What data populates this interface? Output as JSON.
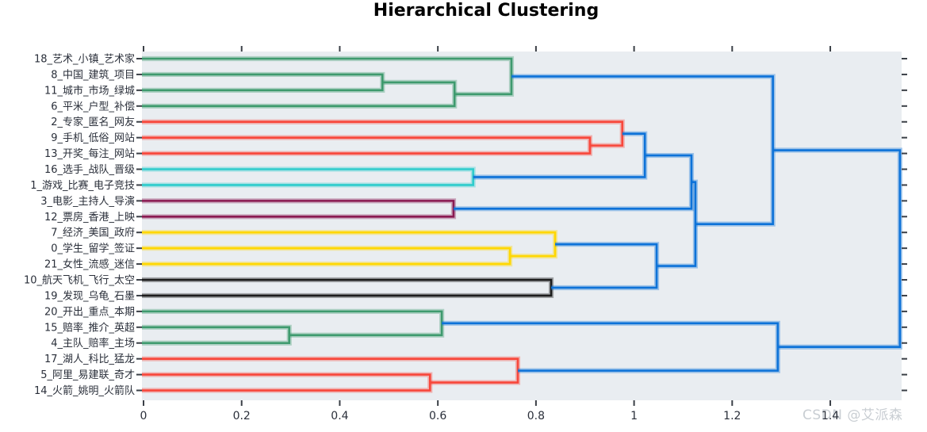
{
  "page": {
    "title": "Hierarchical Clustering",
    "watermark": "CSDN @艾派森"
  },
  "chart_data": {
    "type": "dendrogram",
    "orientation": "right",
    "title": "Hierarchical Clustering",
    "xlabel": "",
    "ylabel": "",
    "grid": false,
    "plot_bg": "#e9edf1",
    "xlim": [
      0,
      1.545
    ],
    "x_ticks": [
      0,
      0.2,
      0.4,
      0.6,
      0.8,
      1.0,
      1.2,
      1.4
    ],
    "x_tick_labels": [
      "0",
      "0.2",
      "0.4",
      "0.6",
      "0.8",
      "1",
      "1.2",
      "1.4"
    ],
    "tick_color": "#3a3f46",
    "label_color": "#2a2f3a",
    "colors": {
      "green": "#3e9a6e",
      "red": "#f8473b",
      "cyan": "#2fcccc",
      "purple": "#8a1a52",
      "yellow": "#ffd700",
      "black": "#1c1c1c",
      "blue": "#0d72d8"
    },
    "leaves": [
      "18_艺术_小镇_艺术家",
      "8_中国_建筑_项目",
      "11_城市_市场_绿城",
      "6_平米_户型_补偿",
      "2_专家_匿名_网友",
      "9_手机_低俗_网站",
      "13_开奖_每注_网站",
      "16_选手_战队_晋级",
      "1_游戏_比赛_电子竞技",
      "3_电影_主持人_导演",
      "12_票房_香港_上映",
      "7_经济_美国_政府",
      "0_学生_留学_签证",
      "21_女性_流感_迷信",
      "10_航天飞机_飞行_太空",
      "19_发现_乌龟_石墨",
      "20_开出_重点_本期",
      "15_赔率_推介_英超",
      "4_主队_赔率_主场",
      "17_湖人_科比_猛龙",
      "5_阿里_易建联_奇才",
      "14_火箭_姚明_火箭队"
    ],
    "merges": [
      {
        "id": 22,
        "a": 17,
        "b": 18,
        "h": 0.297,
        "c": "green"
      },
      {
        "id": 23,
        "a": 1,
        "b": 2,
        "h": 0.487,
        "c": "green"
      },
      {
        "id": 24,
        "a": 20,
        "b": 21,
        "h": 0.584,
        "c": "red"
      },
      {
        "id": 25,
        "a": 16,
        "b": 22,
        "h": 0.608,
        "c": "green"
      },
      {
        "id": 26,
        "a": 9,
        "b": 10,
        "h": 0.632,
        "c": "purple"
      },
      {
        "id": 27,
        "a": 23,
        "b": 3,
        "h": 0.634,
        "c": "green"
      },
      {
        "id": 28,
        "a": 7,
        "b": 8,
        "h": 0.672,
        "c": "cyan"
      },
      {
        "id": 29,
        "a": 12,
        "b": 13,
        "h": 0.747,
        "c": "yellow"
      },
      {
        "id": 30,
        "a": 0,
        "b": 27,
        "h": 0.75,
        "c": "green"
      },
      {
        "id": 31,
        "a": 19,
        "b": 24,
        "h": 0.763,
        "c": "red"
      },
      {
        "id": 32,
        "a": 14,
        "b": 15,
        "h": 0.831,
        "c": "black"
      },
      {
        "id": 33,
        "a": 11,
        "b": 29,
        "h": 0.839,
        "c": "yellow"
      },
      {
        "id": 34,
        "a": 5,
        "b": 6,
        "h": 0.91,
        "c": "red"
      },
      {
        "id": 35,
        "a": 4,
        "b": 34,
        "h": 0.976,
        "c": "red"
      },
      {
        "id": 36,
        "a": 35,
        "b": 28,
        "h": 1.022,
        "c": "blue"
      },
      {
        "id": 37,
        "a": 33,
        "b": 32,
        "h": 1.046,
        "c": "blue"
      },
      {
        "id": 38,
        "a": 36,
        "b": 26,
        "h": 1.117,
        "c": "blue"
      },
      {
        "id": 39,
        "a": 38,
        "b": 37,
        "h": 1.125,
        "c": "blue"
      },
      {
        "id": 40,
        "a": 30,
        "b": 39,
        "h": 1.283,
        "c": "blue"
      },
      {
        "id": 41,
        "a": 25,
        "b": 31,
        "h": 1.293,
        "c": "blue"
      },
      {
        "id": 42,
        "a": 40,
        "b": 41,
        "h": 1.542,
        "c": "blue"
      }
    ]
  }
}
